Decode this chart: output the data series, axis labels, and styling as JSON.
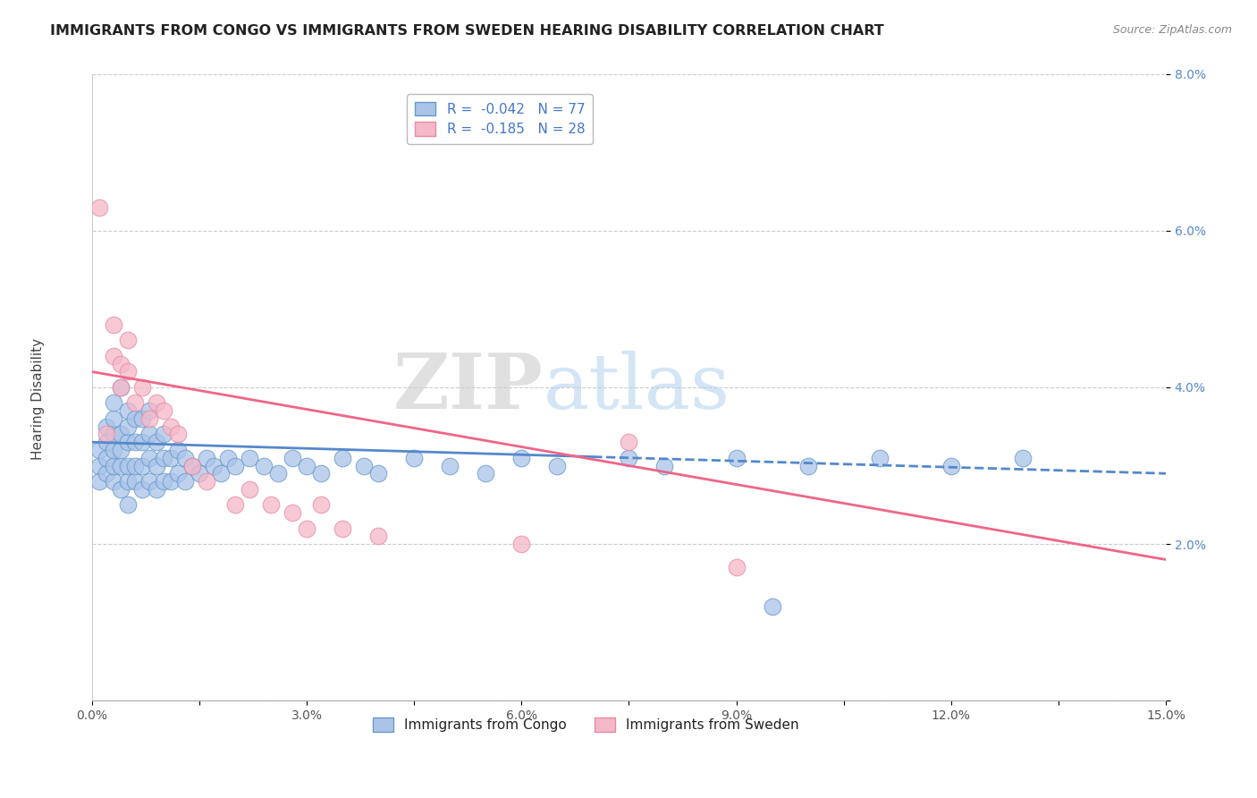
{
  "title": "IMMIGRANTS FROM CONGO VS IMMIGRANTS FROM SWEDEN HEARING DISABILITY CORRELATION CHART",
  "source": "Source: ZipAtlas.com",
  "ylabel": "Hearing Disability",
  "xlim": [
    0.0,
    0.15
  ],
  "ylim": [
    0.0,
    0.08
  ],
  "xticks": [
    0.0,
    0.015,
    0.03,
    0.045,
    0.06,
    0.075,
    0.09,
    0.105,
    0.12,
    0.135,
    0.15
  ],
  "xtick_labels": [
    "0.0%",
    "",
    "3.0%",
    "",
    "6.0%",
    "",
    "9.0%",
    "",
    "12.0%",
    "",
    "15.0%"
  ],
  "yticks": [
    0.0,
    0.02,
    0.04,
    0.06,
    0.08
  ],
  "ytick_labels": [
    "",
    "2.0%",
    "4.0%",
    "6.0%",
    "8.0%"
  ],
  "legend_labels": [
    "Immigrants from Congo",
    "Immigrants from Sweden"
  ],
  "legend_r": [
    -0.042,
    -0.185
  ],
  "legend_n": [
    77,
    28
  ],
  "blue_color": "#aac4e8",
  "pink_color": "#f5b8c8",
  "blue_edge_color": "#6699cc",
  "pink_edge_color": "#e88aa0",
  "blue_line_color": "#5588cc",
  "pink_line_color": "#ee6688",
  "watermark_zip": "ZIP",
  "watermark_atlas": "atlas",
  "title_fontsize": 11.5,
  "axis_label_fontsize": 11,
  "tick_fontsize": 10,
  "legend_fontsize": 11,
  "blue_scatter_x": [
    0.001,
    0.001,
    0.001,
    0.002,
    0.002,
    0.002,
    0.002,
    0.003,
    0.003,
    0.003,
    0.003,
    0.003,
    0.003,
    0.004,
    0.004,
    0.004,
    0.004,
    0.004,
    0.005,
    0.005,
    0.005,
    0.005,
    0.005,
    0.005,
    0.006,
    0.006,
    0.006,
    0.006,
    0.007,
    0.007,
    0.007,
    0.007,
    0.008,
    0.008,
    0.008,
    0.008,
    0.009,
    0.009,
    0.009,
    0.01,
    0.01,
    0.01,
    0.011,
    0.011,
    0.012,
    0.012,
    0.013,
    0.013,
    0.014,
    0.015,
    0.016,
    0.017,
    0.018,
    0.019,
    0.02,
    0.022,
    0.024,
    0.026,
    0.028,
    0.03,
    0.032,
    0.035,
    0.038,
    0.04,
    0.045,
    0.05,
    0.055,
    0.06,
    0.065,
    0.075,
    0.08,
    0.09,
    0.095,
    0.1,
    0.11,
    0.12,
    0.13
  ],
  "blue_scatter_y": [
    0.03,
    0.028,
    0.032,
    0.029,
    0.031,
    0.033,
    0.035,
    0.028,
    0.03,
    0.032,
    0.034,
    0.036,
    0.038,
    0.027,
    0.03,
    0.032,
    0.034,
    0.04,
    0.025,
    0.028,
    0.03,
    0.033,
    0.035,
    0.037,
    0.028,
    0.03,
    0.033,
    0.036,
    0.027,
    0.03,
    0.033,
    0.036,
    0.028,
    0.031,
    0.034,
    0.037,
    0.027,
    0.03,
    0.033,
    0.028,
    0.031,
    0.034,
    0.028,
    0.031,
    0.029,
    0.032,
    0.028,
    0.031,
    0.03,
    0.029,
    0.031,
    0.03,
    0.029,
    0.031,
    0.03,
    0.031,
    0.03,
    0.029,
    0.031,
    0.03,
    0.029,
    0.031,
    0.03,
    0.029,
    0.031,
    0.03,
    0.029,
    0.031,
    0.03,
    0.031,
    0.03,
    0.031,
    0.012,
    0.03,
    0.031,
    0.03,
    0.031
  ],
  "pink_scatter_x": [
    0.001,
    0.002,
    0.003,
    0.003,
    0.004,
    0.004,
    0.005,
    0.005,
    0.006,
    0.007,
    0.008,
    0.009,
    0.01,
    0.011,
    0.012,
    0.014,
    0.016,
    0.02,
    0.022,
    0.025,
    0.028,
    0.03,
    0.032,
    0.035,
    0.04,
    0.06,
    0.075,
    0.09
  ],
  "pink_scatter_y": [
    0.063,
    0.034,
    0.044,
    0.048,
    0.04,
    0.043,
    0.042,
    0.046,
    0.038,
    0.04,
    0.036,
    0.038,
    0.037,
    0.035,
    0.034,
    0.03,
    0.028,
    0.025,
    0.027,
    0.025,
    0.024,
    0.022,
    0.025,
    0.022,
    0.021,
    0.02,
    0.033,
    0.017
  ],
  "blue_trend_x": [
    0.0,
    0.15
  ],
  "blue_trend_y_start": 0.033,
  "blue_trend_y_end": 0.029,
  "pink_trend_x": [
    0.0,
    0.15
  ],
  "pink_trend_y_start": 0.042,
  "pink_trend_y_end": 0.018
}
